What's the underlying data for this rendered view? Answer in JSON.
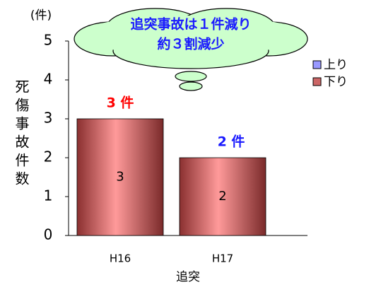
{
  "chart_data": {
    "type": "stacked_bar",
    "y_unit": "(件)",
    "ylabel": "死傷事故件数",
    "xlabel": "追突",
    "categories": [
      "H16",
      "H17"
    ],
    "series": [
      {
        "name": "上り",
        "color": "#9999ff",
        "values": [
          0,
          0
        ]
      },
      {
        "name": "下り",
        "color": "#cc6666",
        "values": [
          3,
          2
        ]
      }
    ],
    "annotations": [
      {
        "text": "3 件",
        "color": "#ff0000"
      },
      {
        "text": "2 件",
        "color": "#1a1aff"
      }
    ],
    "callout": [
      "追突事故は１件減り",
      "約３割減少"
    ],
    "callout_color": "#1a1aff",
    "ylim": [
      0,
      5
    ],
    "yticks": [
      0,
      1,
      2,
      3,
      4,
      5
    ],
    "legend": "right"
  }
}
